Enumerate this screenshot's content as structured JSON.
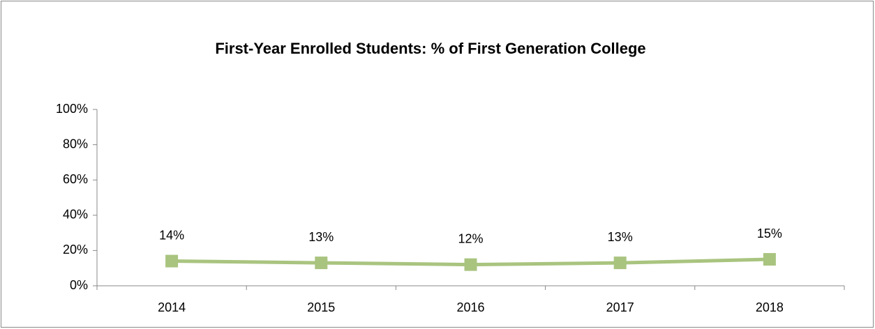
{
  "chart_data": {
    "type": "line",
    "title": "First-Year Enrolled Students: % of First Generation College",
    "categories": [
      "2014",
      "2015",
      "2016",
      "2017",
      "2018"
    ],
    "series": [
      {
        "name": "First Generation College",
        "color": "#a9c47f",
        "values": [
          14,
          13,
          12,
          13,
          15
        ],
        "value_labels": [
          "14%",
          "13%",
          "12%",
          "13%",
          "15%"
        ]
      }
    ],
    "ylim": [
      0,
      100
    ],
    "yticks": [
      {
        "value": 0,
        "label": "0%"
      },
      {
        "value": 20,
        "label": "20%"
      },
      {
        "value": 40,
        "label": "40%"
      },
      {
        "value": 60,
        "label": "60%"
      },
      {
        "value": 80,
        "label": "80%"
      },
      {
        "value": 100,
        "label": "100%"
      }
    ],
    "grid": false
  }
}
